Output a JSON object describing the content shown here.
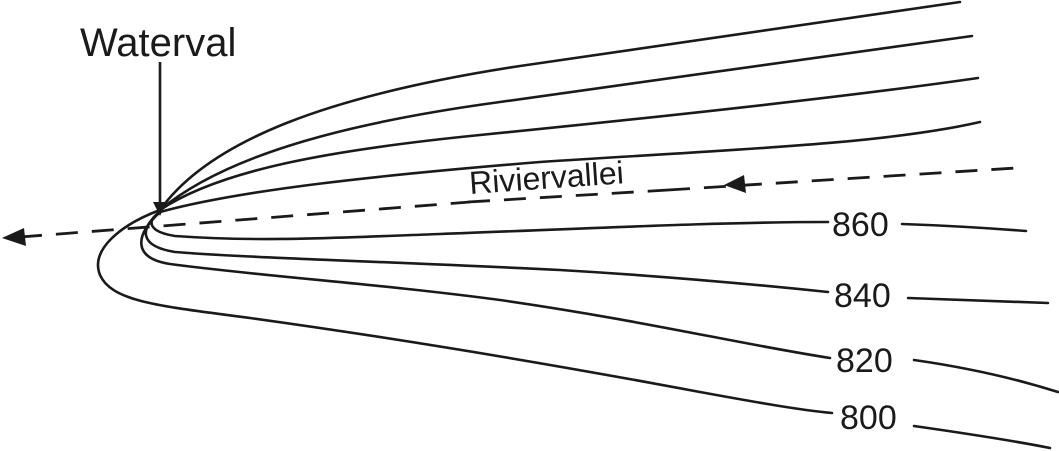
{
  "labels": {
    "waterfall": "Waterval",
    "river_valley": "Riviervallei"
  },
  "contours": [
    {
      "value": "860"
    },
    {
      "value": "840"
    },
    {
      "value": "820"
    },
    {
      "value": "800"
    }
  ],
  "colors": {
    "line": "#1a1a1a",
    "background": "#ffffff"
  }
}
